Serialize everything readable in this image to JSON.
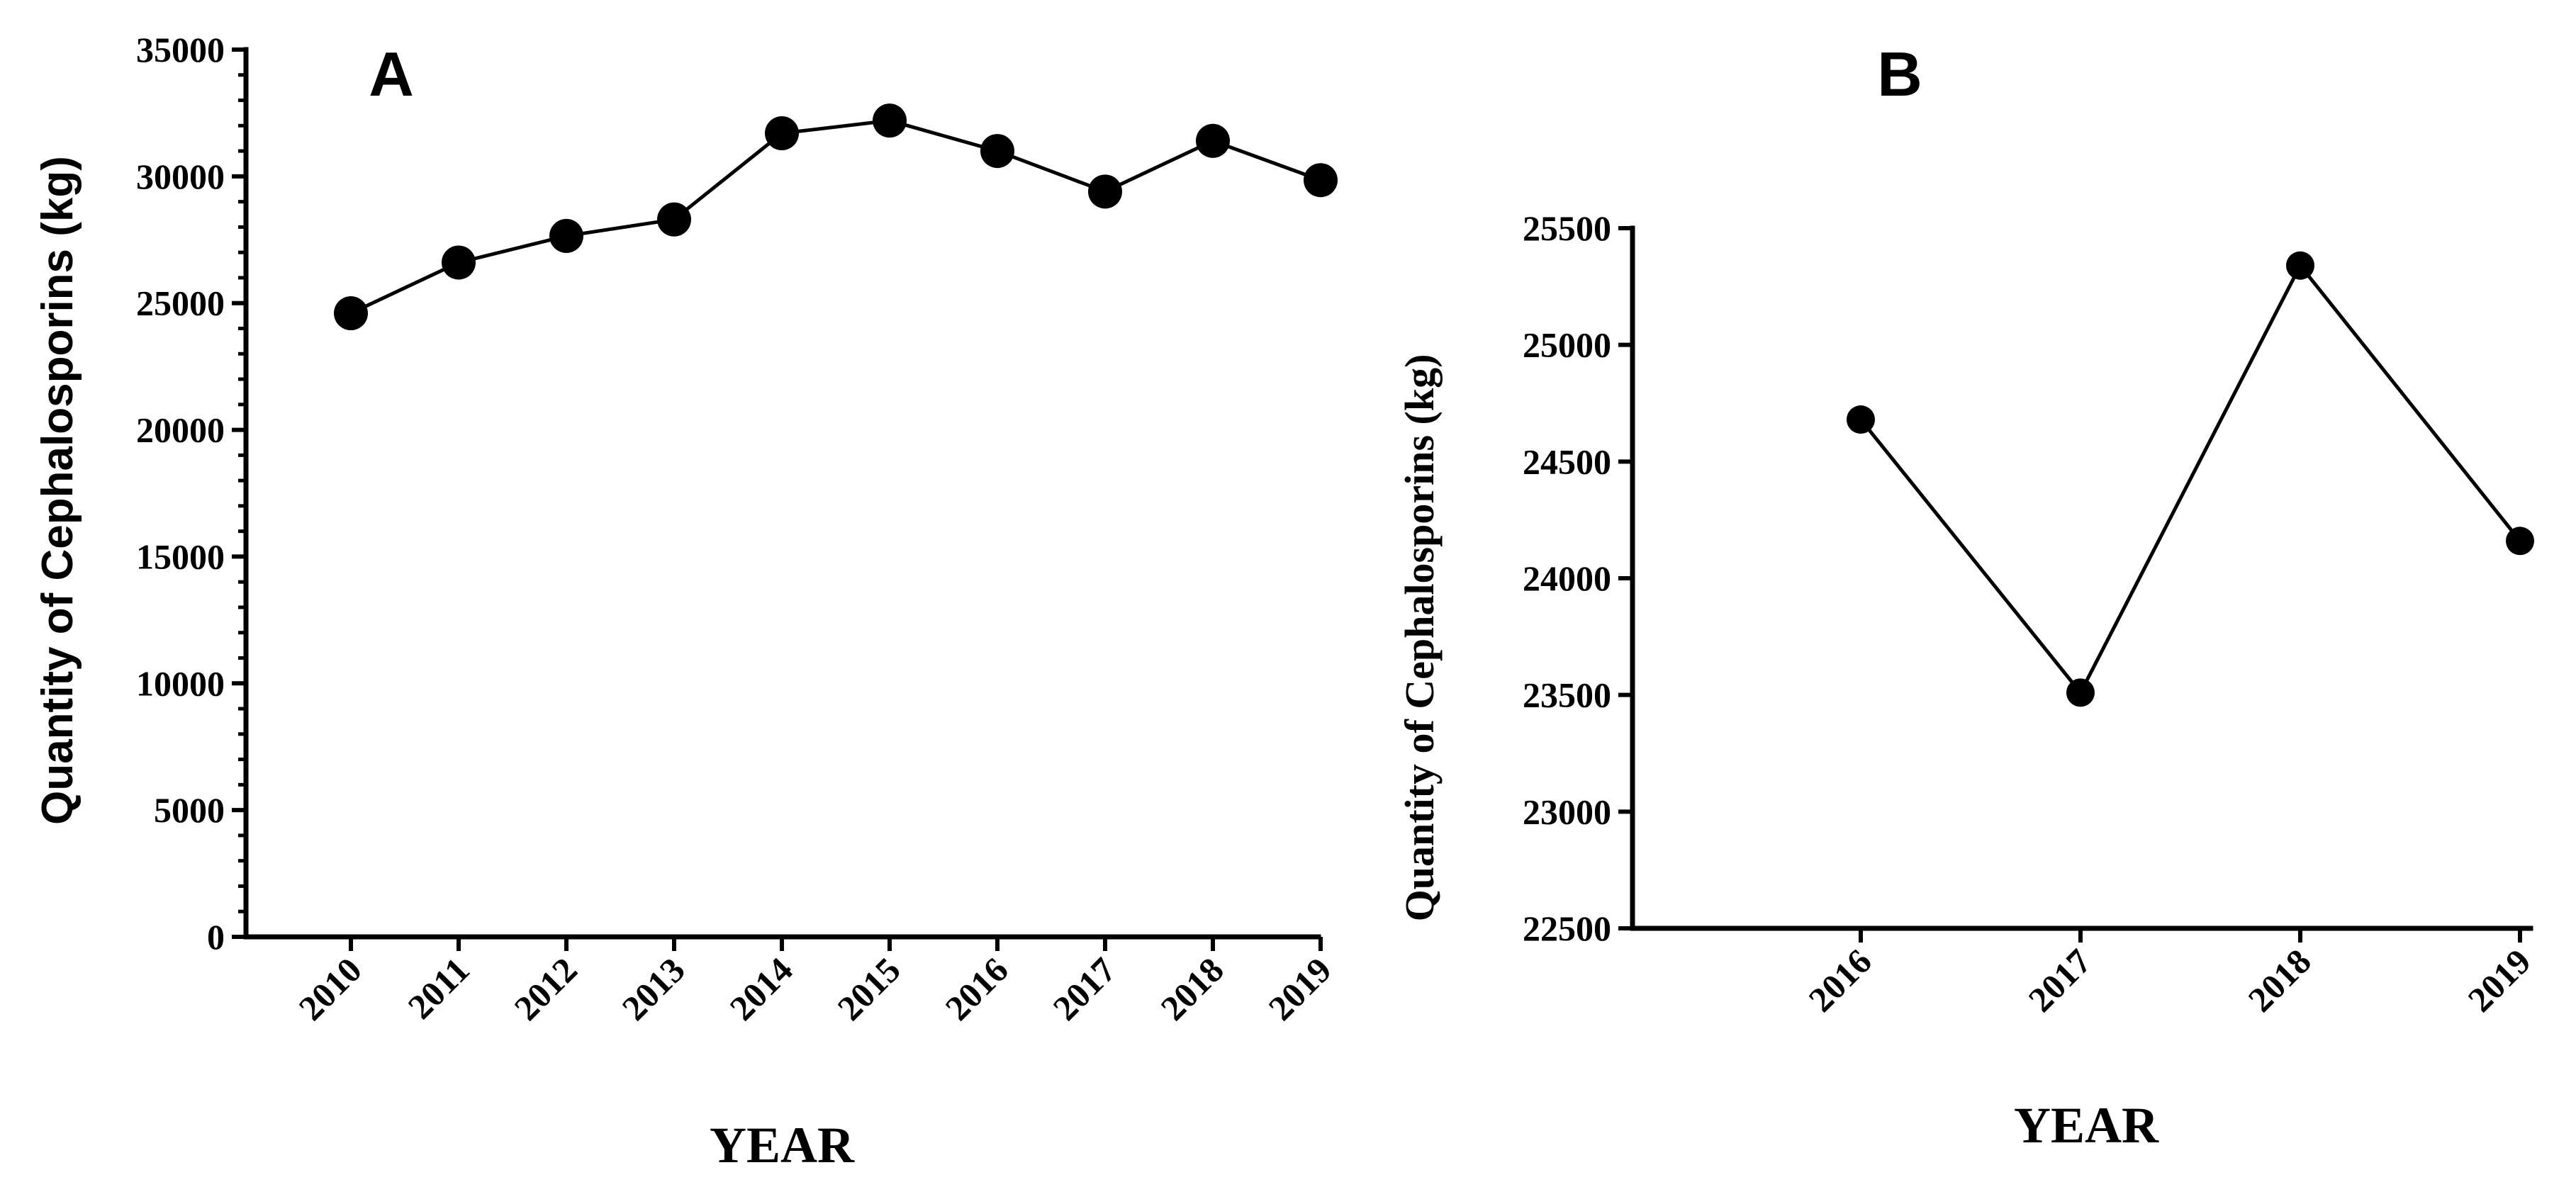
{
  "chart_data": [
    {
      "type": "line",
      "panel_label": "A",
      "x": [
        "2010",
        "2011",
        "2012",
        "2013",
        "2014",
        "2015",
        "2016",
        "2017",
        "2018",
        "2019"
      ],
      "series": [
        {
          "values": [
            24600,
            26600,
            27650,
            28300,
            31700,
            32200,
            31000,
            29400,
            31400,
            29850
          ]
        }
      ],
      "ylabel": "Quantity of Cephalosporins (kg)",
      "xlabel": "YEAR",
      "ylim": [
        0,
        35000
      ],
      "yticks": [
        "0",
        "5000",
        "10000",
        "15000",
        "20000",
        "25000",
        "30000",
        "35000"
      ],
      "grid": false
    },
    {
      "type": "line",
      "panel_label": "B",
      "x": [
        "2016",
        "2017",
        "2018",
        "2019"
      ],
      "series": [
        {
          "values": [
            24680,
            23510,
            25340,
            24160
          ]
        }
      ],
      "ylabel": "Quantity of Cephalosporins (kg)",
      "xlabel": "YEAR",
      "ylim": [
        22500,
        25500
      ],
      "yticks": [
        "22500",
        "23000",
        "23500",
        "24000",
        "24500",
        "25000",
        "25500"
      ],
      "grid": false
    }
  ]
}
